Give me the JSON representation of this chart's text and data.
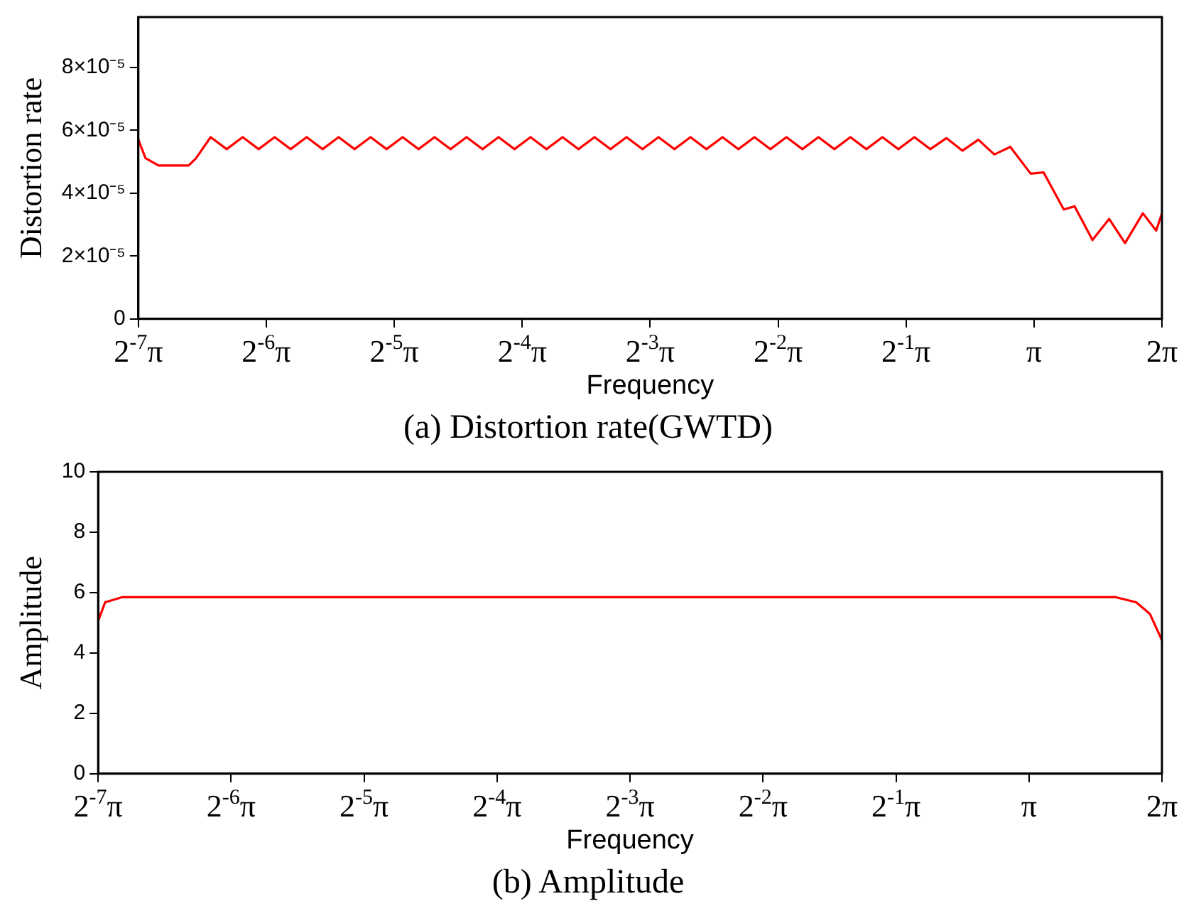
{
  "chart_data": [
    {
      "type": "line",
      "title": "(a) Distortion rate(GWTD)",
      "xlabel": "Frequency",
      "ylabel": "Distortion rate",
      "log": "x",
      "grid": false,
      "legend": false,
      "xlim": [
        0.02454369,
        6.283185
      ],
      "xticks": [
        {
          "value": 0.02454369,
          "label": "2$^{-7}$π"
        },
        {
          "value": 0.04908739,
          "label": "2$^{-6}$π"
        },
        {
          "value": 0.09817477,
          "label": "2$^{-5}$π"
        },
        {
          "value": 0.1963495,
          "label": "2$^{-4}$π"
        },
        {
          "value": 0.3926991,
          "label": "2$^{-3}$π"
        },
        {
          "value": 0.7853982,
          "label": "2$^{-2}$π"
        },
        {
          "value": 1.570796,
          "label": "2$^{-1}$π"
        },
        {
          "value": 3.141593,
          "label": "π"
        },
        {
          "value": 6.283185,
          "label": "2π"
        }
      ],
      "ylim": [
        0,
        9.6e-05
      ],
      "yticks": [
        0,
        {
          "value": 2e-05,
          "label": "2×10⁻⁵"
        },
        {
          "value": 4e-05,
          "label": "4×10⁻⁵"
        },
        {
          "value": 6e-05,
          "label": "6×10⁻⁵"
        },
        {
          "value": 8e-05,
          "label": "8×10⁻⁵"
        }
      ],
      "series": [
        {
          "color": "#ff0000",
          "x": [
            0.02454369,
            0.025518,
            0.027372,
            0.032233,
            0.033505,
            0.03631,
            0.0396,
            0.04318,
            0.04709,
            0.05135,
            0.056,
            0.06107,
            0.0666,
            0.07262,
            0.07919,
            0.08636,
            0.09418,
            0.1027,
            0.112,
            0.12213,
            0.13318,
            0.14524,
            0.15839,
            0.17272,
            0.18835,
            0.2054,
            0.22399,
            0.24426,
            0.26637,
            0.29048,
            0.31677,
            0.34544,
            0.37671,
            0.4108,
            0.44799,
            0.48853,
            0.53275,
            0.58096,
            0.63354,
            0.69088,
            0.75341,
            0.8216,
            0.89596,
            0.97705,
            1.06548,
            1.16191,
            1.26707,
            1.38175,
            1.50682,
            1.64318,
            1.79192,
            1.95407,
            2.13095,
            2.32379,
            2.53413,
            2.76345,
            3.0855,
            3.309,
            3.691,
            3.915,
            4.312,
            4.721,
            5.144,
            5.666,
            6.09,
            6.283185
          ],
          "values": [
            5.7e-05,
            5.11e-05,
            4.88e-05,
            4.88e-05,
            5.1e-05,
            5.78e-05,
            5.4e-05,
            5.78e-05,
            5.4e-05,
            5.78e-05,
            5.4e-05,
            5.78e-05,
            5.4e-05,
            5.78e-05,
            5.4e-05,
            5.78e-05,
            5.4e-05,
            5.78e-05,
            5.4e-05,
            5.78e-05,
            5.4e-05,
            5.78e-05,
            5.4e-05,
            5.78e-05,
            5.4e-05,
            5.78e-05,
            5.4e-05,
            5.78e-05,
            5.4e-05,
            5.78e-05,
            5.4e-05,
            5.78e-05,
            5.4e-05,
            5.78e-05,
            5.4e-05,
            5.78e-05,
            5.4e-05,
            5.78e-05,
            5.4e-05,
            5.78e-05,
            5.4e-05,
            5.78e-05,
            5.4e-05,
            5.78e-05,
            5.4e-05,
            5.78e-05,
            5.4e-05,
            5.78e-05,
            5.4e-05,
            5.78e-05,
            5.4e-05,
            5.75e-05,
            5.35e-05,
            5.7e-05,
            5.23e-05,
            5.47e-05,
            4.62e-05,
            4.66e-05,
            3.48e-05,
            3.58e-05,
            2.51e-05,
            3.18e-05,
            2.41e-05,
            3.36e-05,
            2.81e-05,
            3.36e-05
          ]
        }
      ]
    },
    {
      "type": "line",
      "title": "(b) Amplitude",
      "xlabel": "Frequency",
      "ylabel": "Amplitude",
      "log": "x",
      "grid": false,
      "legend": false,
      "xlim": [
        0.02454369,
        6.283185
      ],
      "xticks": [
        {
          "value": 0.02454369,
          "label": "2$^{-7}$π"
        },
        {
          "value": 0.04908739,
          "label": "2$^{-6}$π"
        },
        {
          "value": 0.09817477,
          "label": "2$^{-5}$π"
        },
        {
          "value": 0.1963495,
          "label": "2$^{-4}$π"
        },
        {
          "value": 0.3926991,
          "label": "2$^{-3}$π"
        },
        {
          "value": 0.7853982,
          "label": "2$^{-2}$π"
        },
        {
          "value": 1.570796,
          "label": "2$^{-1}$π"
        },
        {
          "value": 3.141593,
          "label": "π"
        },
        {
          "value": 6.283185,
          "label": "2π"
        }
      ],
      "ylim": [
        0,
        10
      ],
      "yticks": [
        0,
        2,
        4,
        6,
        8,
        10
      ],
      "series": [
        {
          "color": "#ff0000",
          "x": [
            0.02454369,
            0.025457,
            0.027885,
            4.926,
            5.492,
            5.903,
            6.283185
          ],
          "values": [
            5.06,
            5.68,
            5.85,
            5.85,
            5.68,
            5.29,
            4.42
          ]
        }
      ]
    }
  ]
}
